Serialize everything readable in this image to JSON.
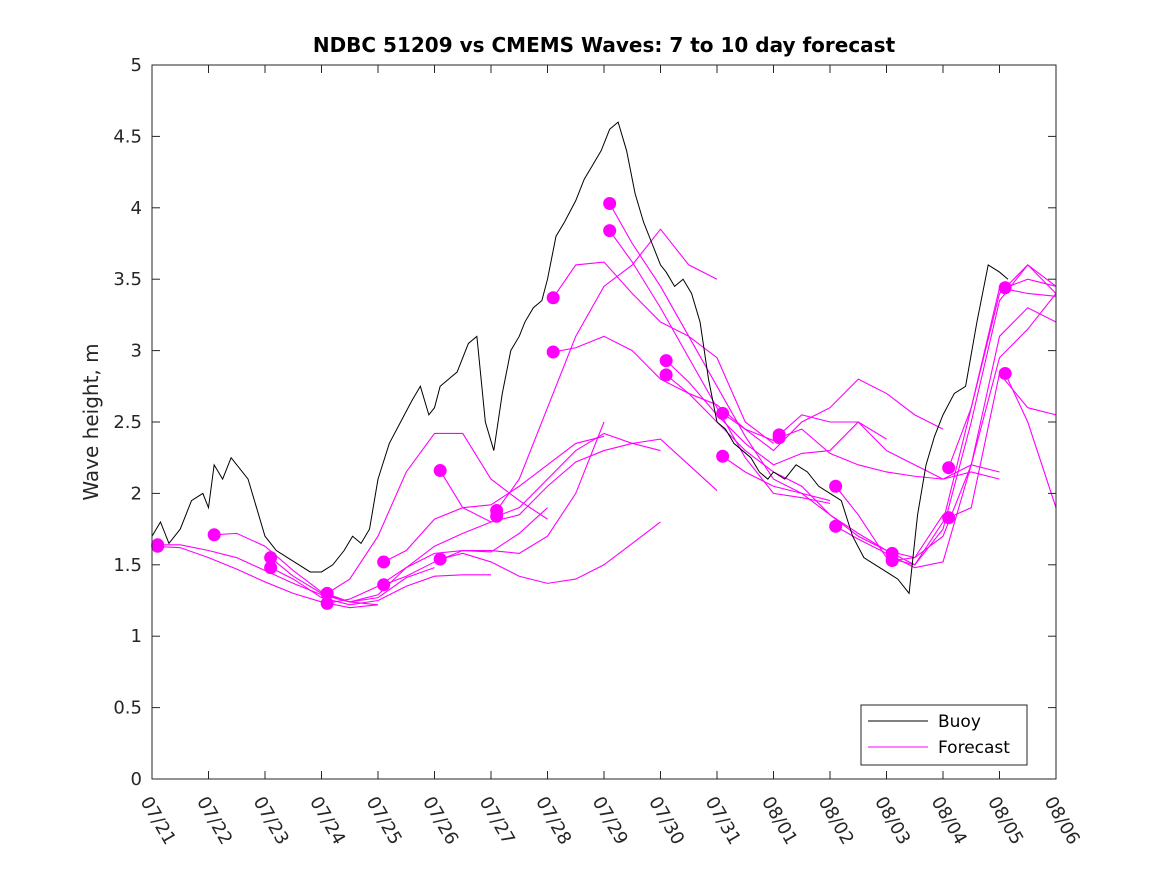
{
  "chart_data": {
    "type": "line",
    "title": "NDBC 51209 vs CMEMS Waves: 7 to 10 day forecast",
    "xlabel": "",
    "ylabel": "Wave height, m",
    "xlim": [
      0,
      16
    ],
    "ylim": [
      0,
      5
    ],
    "x_tick_labels": [
      "07/21",
      "07/22",
      "07/23",
      "07/24",
      "07/25",
      "07/26",
      "07/27",
      "07/28",
      "07/29",
      "07/30",
      "07/31",
      "08/01",
      "08/02",
      "08/03",
      "08/04",
      "08/05",
      "08/06"
    ],
    "y_ticks": [
      0,
      0.5,
      1,
      1.5,
      2,
      2.5,
      3,
      3.5,
      4,
      4.5,
      5
    ],
    "y_tick_labels": [
      "0",
      "0.5",
      "1",
      "1.5",
      "2",
      "2.5",
      "3",
      "3.5",
      "4",
      "4.5",
      "5"
    ],
    "x_unit": "days from 07/21",
    "grid": false,
    "legend_placement": "bottom-right",
    "colors": {
      "buoy": "#000000",
      "forecast": "#ff00ff"
    },
    "legend": [
      {
        "label": "Buoy",
        "color": "#000000"
      },
      {
        "label": "Forecast",
        "color": "#ff00ff"
      }
    ],
    "series": [
      {
        "name": "Buoy",
        "kind": "observed",
        "x": [
          0,
          0.15,
          0.3,
          0.5,
          0.7,
          0.9,
          1.0,
          1.1,
          1.25,
          1.4,
          1.5,
          1.7,
          1.85,
          2.0,
          2.2,
          2.4,
          2.6,
          2.8,
          3.0,
          3.2,
          3.4,
          3.55,
          3.7,
          3.85,
          4.0,
          4.2,
          4.4,
          4.6,
          4.75,
          4.9,
          5.0,
          5.1,
          5.25,
          5.4,
          5.6,
          5.75,
          5.9,
          6.05,
          6.2,
          6.35,
          6.5,
          6.6,
          6.75,
          6.9,
          7.0,
          7.15,
          7.3,
          7.5,
          7.65,
          7.8,
          7.95,
          8.1,
          8.25,
          8.4,
          8.55,
          8.7,
          8.85,
          9.0,
          9.1,
          9.25,
          9.4,
          9.55,
          9.7,
          9.85,
          10.0,
          10.15,
          10.3,
          10.45,
          10.6,
          10.75,
          10.9,
          11.0,
          11.2,
          11.4,
          11.6,
          11.8,
          12.0,
          12.2,
          12.4,
          12.6,
          12.8,
          13.0,
          13.2,
          13.4,
          13.55,
          13.7,
          13.85,
          14.0,
          14.2,
          14.4,
          14.6,
          14.8,
          15.0,
          15.15
        ],
        "y": [
          1.7,
          1.8,
          1.65,
          1.75,
          1.95,
          2.0,
          1.9,
          2.2,
          2.1,
          2.25,
          2.2,
          2.1,
          1.9,
          1.7,
          1.6,
          1.55,
          1.5,
          1.45,
          1.45,
          1.5,
          1.6,
          1.7,
          1.65,
          1.75,
          2.1,
          2.35,
          2.5,
          2.65,
          2.75,
          2.55,
          2.6,
          2.75,
          2.8,
          2.85,
          3.05,
          3.1,
          2.5,
          2.3,
          2.7,
          3.0,
          3.1,
          3.2,
          3.3,
          3.35,
          3.5,
          3.8,
          3.9,
          4.05,
          4.2,
          4.3,
          4.4,
          4.55,
          4.6,
          4.4,
          4.1,
          3.9,
          3.75,
          3.6,
          3.55,
          3.45,
          3.5,
          3.4,
          3.2,
          2.8,
          2.5,
          2.45,
          2.35,
          2.3,
          2.25,
          2.15,
          2.1,
          2.15,
          2.1,
          2.2,
          2.15,
          2.05,
          2.0,
          1.95,
          1.7,
          1.55,
          1.5,
          1.45,
          1.4,
          1.3,
          1.85,
          2.2,
          2.4,
          2.55,
          2.7,
          2.75,
          3.2,
          3.6,
          3.55,
          3.5
        ]
      },
      {
        "name": "Forecast",
        "kind": "forecast",
        "runs": [
          {
            "x": [
              0,
              0.5,
              1.0,
              1.5,
              2.0,
              2.5,
              3.0,
              3.5,
              4.0
            ],
            "y": [
              1.63,
              1.62,
              1.55,
              1.47,
              1.38,
              1.3,
              1.24,
              1.2,
              1.22
            ]
          },
          {
            "x": [
              0,
              0.5,
              1.0,
              1.5,
              2.0,
              2.5,
              3.0,
              3.5,
              4.0
            ],
            "y": [
              1.64,
              1.64,
              1.6,
              1.55,
              1.46,
              1.37,
              1.29,
              1.24,
              1.22
            ]
          },
          {
            "x": [
              1.1,
              1.5,
              2.0,
              2.5,
              3.0,
              3.5,
              4.0,
              4.5,
              5.0
            ],
            "y": [
              1.71,
              1.72,
              1.63,
              1.46,
              1.31,
              1.24,
              1.27,
              1.41,
              1.48
            ]
          },
          {
            "x": [
              2.1,
              2.5,
              3.0,
              3.5,
              4.0,
              4.5,
              5.0,
              5.5,
              6.0
            ],
            "y": [
              1.55,
              1.42,
              1.3,
              1.24,
              1.29,
              1.48,
              1.63,
              1.72,
              1.8
            ]
          },
          {
            "x": [
              2.1,
              2.5,
              3.0,
              3.5,
              4.0,
              4.5,
              5.0,
              5.5,
              6.0
            ],
            "y": [
              1.48,
              1.4,
              1.27,
              1.22,
              1.25,
              1.35,
              1.42,
              1.43,
              1.43
            ]
          },
          {
            "x": [
              3.1,
              3.5,
              4.0,
              4.5,
              5.0,
              5.5,
              6.0,
              6.5,
              7.0
            ],
            "y": [
              1.3,
              1.4,
              1.7,
              2.15,
              2.42,
              2.42,
              2.1,
              1.95,
              1.82
            ]
          },
          {
            "x": [
              3.1,
              3.5,
              4.0,
              4.5,
              5.0,
              5.5,
              6.0,
              6.5,
              7.0
            ],
            "y": [
              1.23,
              1.26,
              1.35,
              1.48,
              1.58,
              1.6,
              1.59,
              1.72,
              1.9
            ]
          },
          {
            "x": [
              4.1,
              4.5,
              5.0,
              5.5,
              6.0,
              6.5,
              7.0,
              7.5,
              8.0
            ],
            "y": [
              1.52,
              1.6,
              1.82,
              1.9,
              1.92,
              2.05,
              2.2,
              2.35,
              2.4
            ]
          },
          {
            "x": [
              4.1,
              4.5,
              5.0,
              5.5,
              6.0,
              6.5,
              7.0,
              7.5,
              8.0
            ],
            "y": [
              1.36,
              1.42,
              1.52,
              1.6,
              1.6,
              1.58,
              1.7,
              2.0,
              2.5
            ]
          },
          {
            "x": [
              5.1,
              5.5,
              6.0,
              6.5,
              7.0,
              7.5,
              8.0,
              8.5,
              9.0
            ],
            "y": [
              2.16,
              1.9,
              1.8,
              1.85,
              2.05,
              2.22,
              2.3,
              2.35,
              2.3
            ]
          },
          {
            "x": [
              5.1,
              5.5,
              6.0,
              6.5,
              7.0,
              7.5,
              8.0,
              8.5,
              9.0
            ],
            "y": [
              1.54,
              1.58,
              1.52,
              1.42,
              1.37,
              1.4,
              1.5,
              1.65,
              1.8
            ]
          },
          {
            "x": [
              6.1,
              6.5,
              7.0,
              7.5,
              8.0,
              8.5,
              9.0,
              9.5,
              10.0
            ],
            "y": [
              1.88,
              2.1,
              2.6,
              3.1,
              3.45,
              3.6,
              3.85,
              3.6,
              3.5
            ]
          },
          {
            "x": [
              6.1,
              6.5,
              7.0,
              7.5,
              8.0,
              8.5,
              9.0,
              9.5,
              10.0
            ],
            "y": [
              1.84,
              1.9,
              2.1,
              2.3,
              2.42,
              2.35,
              2.38,
              2.2,
              2.02
            ]
          },
          {
            "x": [
              7.1,
              7.5,
              8.0,
              8.5,
              9.0,
              9.5,
              10.0,
              10.5,
              11.0
            ],
            "y": [
              3.37,
              3.6,
              3.62,
              3.4,
              3.2,
              3.1,
              2.95,
              2.5,
              2.35
            ]
          },
          {
            "x": [
              7.1,
              7.5,
              8.0,
              8.5,
              9.0,
              9.5,
              10.0,
              10.5,
              11.0
            ],
            "y": [
              2.99,
              3.02,
              3.1,
              3.0,
              2.8,
              2.7,
              2.62,
              2.45,
              2.37
            ]
          },
          {
            "x": [
              8.1,
              8.5,
              9.0,
              9.5,
              10.0,
              10.5,
              11.0,
              11.5,
              12.0
            ],
            "y": [
              4.03,
              3.75,
              3.45,
              3.1,
              2.75,
              2.4,
              2.1,
              2.0,
              1.95
            ]
          },
          {
            "x": [
              8.1,
              8.5,
              9.0,
              9.5,
              10.0,
              10.5,
              11.0,
              11.5,
              12.0
            ],
            "y": [
              3.84,
              3.62,
              3.3,
              2.95,
              2.6,
              2.25,
              2.0,
              1.97,
              1.93
            ]
          },
          {
            "x": [
              9.1,
              9.5,
              10.0,
              10.5,
              11.0,
              11.5,
              12.0,
              12.5,
              13.0
            ],
            "y": [
              2.93,
              2.78,
              2.55,
              2.35,
              2.2,
              2.28,
              2.3,
              2.5,
              2.38
            ]
          },
          {
            "x": [
              9.1,
              9.5,
              10.0,
              10.5,
              11.0,
              11.5,
              12.0,
              12.5,
              13.0
            ],
            "y": [
              2.83,
              2.7,
              2.5,
              2.3,
              2.15,
              2.05,
              1.85,
              1.7,
              1.6
            ]
          },
          {
            "x": [
              10.1,
              10.5,
              11.0,
              11.5,
              12.0,
              12.5,
              13.0,
              13.5,
              14.0
            ],
            "y": [
              2.56,
              2.45,
              2.3,
              2.5,
              2.6,
              2.8,
              2.7,
              2.55,
              2.45
            ]
          },
          {
            "x": [
              10.1,
              10.5,
              11.0,
              11.5,
              12.0,
              12.5,
              13.0,
              13.5,
              14.0
            ],
            "y": [
              2.26,
              2.15,
              2.05,
              2.0,
              1.85,
              1.72,
              1.6,
              1.55,
              1.85
            ]
          },
          {
            "x": [
              11.1,
              11.5,
              12.0,
              12.5,
              13.0,
              13.5,
              14.0,
              14.5,
              15.0
            ],
            "y": [
              2.41,
              2.55,
              2.5,
              2.5,
              2.3,
              2.2,
              2.1,
              2.2,
              2.15
            ]
          },
          {
            "x": [
              11.1,
              11.5,
              12.0,
              12.5,
              13.0,
              13.5,
              14.0,
              14.5,
              15.0
            ],
            "y": [
              2.39,
              2.45,
              2.28,
              2.2,
              2.15,
              2.12,
              2.1,
              2.15,
              2.1
            ]
          },
          {
            "x": [
              12.1,
              12.5,
              13.0,
              13.5,
              14.0,
              14.5,
              15.0,
              15.5,
              16.0
            ],
            "y": [
              2.05,
              1.85,
              1.55,
              1.5,
              1.8,
              2.6,
              3.4,
              3.6,
              3.4
            ]
          },
          {
            "x": [
              12.1,
              12.5,
              13.0,
              13.5,
              14.0,
              14.5,
              15.0,
              15.5,
              16.0
            ],
            "y": [
              1.77,
              1.68,
              1.58,
              1.48,
              1.52,
              2.2,
              3.1,
              3.3,
              3.2
            ]
          },
          {
            "x": [
              13.1,
              13.5,
              14.0,
              14.5,
              15.0,
              15.5,
              16.0
            ],
            "y": [
              1.58,
              1.5,
              1.75,
              2.5,
              3.35,
              3.6,
              3.45
            ]
          },
          {
            "x": [
              13.1,
              13.5,
              14.0,
              14.5,
              15.0,
              15.5,
              16.0
            ],
            "y": [
              1.53,
              1.55,
              1.7,
              2.2,
              2.95,
              3.15,
              3.4
            ]
          },
          {
            "x": [
              14.1,
              14.5,
              15.0,
              15.5,
              16.0
            ],
            "y": [
              2.18,
              2.6,
              3.44,
              3.4,
              3.38
            ]
          },
          {
            "x": [
              14.1,
              14.5,
              15.0,
              15.5,
              16.0
            ],
            "y": [
              1.83,
              1.9,
              2.84,
              2.6,
              2.55
            ]
          },
          {
            "x": [
              15.1,
              15.5,
              16.0
            ],
            "y": [
              2.84,
              2.5,
              1.9
            ]
          },
          {
            "x": [
              15.1,
              15.5,
              16.0
            ],
            "y": [
              3.44,
              3.5,
              3.45
            ]
          }
        ],
        "markers": {
          "x": [
            0.1,
            0.1,
            1.1,
            2.1,
            2.1,
            3.1,
            3.1,
            4.1,
            4.1,
            5.1,
            5.1,
            6.1,
            6.1,
            7.1,
            7.1,
            8.1,
            8.1,
            9.1,
            9.1,
            10.1,
            10.1,
            11.1,
            11.1,
            12.1,
            12.1,
            13.1,
            13.1,
            14.1,
            14.1,
            15.1,
            15.1
          ],
          "y": [
            1.63,
            1.64,
            1.71,
            1.55,
            1.48,
            1.3,
            1.23,
            1.52,
            1.36,
            2.16,
            1.54,
            1.88,
            1.84,
            3.37,
            2.99,
            4.03,
            3.84,
            2.93,
            2.83,
            2.56,
            2.26,
            2.41,
            2.39,
            2.05,
            1.77,
            1.58,
            1.53,
            2.18,
            1.83,
            3.44,
            2.84
          ]
        }
      }
    ]
  }
}
